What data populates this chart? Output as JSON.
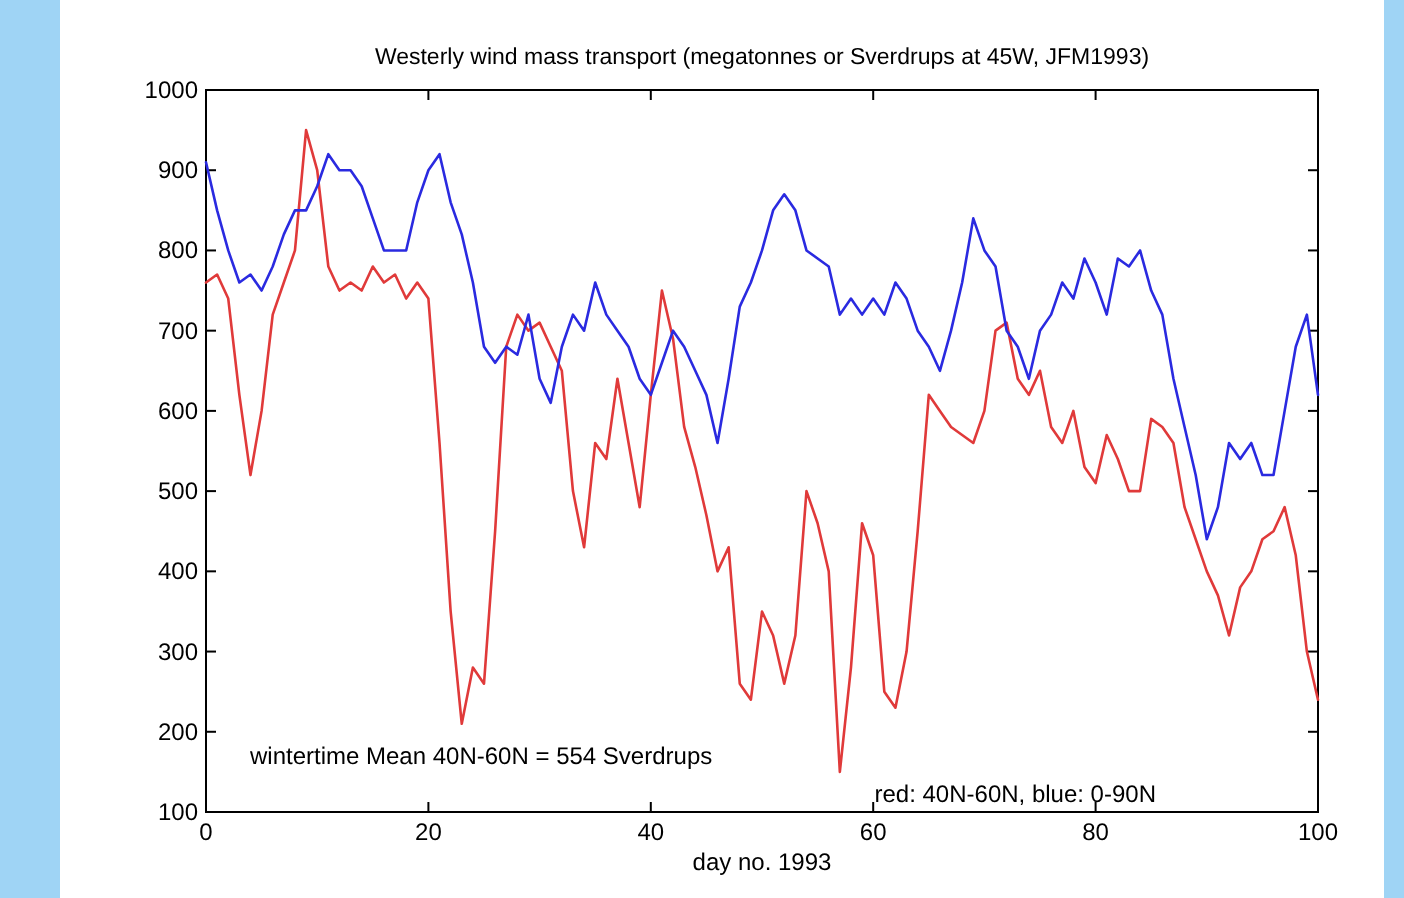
{
  "chart_data": {
    "type": "line",
    "title": "Westerly wind mass transport (megatonnes or Sverdrups at 45W, JFM1993)",
    "xlabel": "day no. 1993",
    "x": [
      0,
      1,
      2,
      3,
      4,
      5,
      6,
      7,
      8,
      9,
      10,
      11,
      12,
      13,
      14,
      15,
      16,
      17,
      18,
      19,
      20,
      21,
      22,
      23,
      24,
      25,
      26,
      27,
      28,
      29,
      30,
      31,
      32,
      33,
      34,
      35,
      36,
      37,
      38,
      39,
      40,
      41,
      42,
      43,
      44,
      45,
      46,
      47,
      48,
      49,
      50,
      51,
      52,
      53,
      54,
      55,
      56,
      57,
      58,
      59,
      60,
      61,
      62,
      63,
      64,
      65,
      66,
      67,
      68,
      69,
      70,
      71,
      72,
      73,
      74,
      75,
      76,
      77,
      78,
      79,
      80,
      81,
      82,
      83,
      84,
      85,
      86,
      87,
      88,
      89,
      90,
      91,
      92,
      93,
      94,
      95,
      96,
      97,
      98,
      99,
      100
    ],
    "series": [
      {
        "color": "#e03a3a",
        "values": [
          760,
          770,
          740,
          620,
          520,
          600,
          720,
          760,
          800,
          950,
          900,
          780,
          750,
          760,
          750,
          780,
          760,
          770,
          740,
          760,
          740,
          560,
          350,
          210,
          280,
          260,
          450,
          680,
          720,
          700,
          710,
          680,
          650,
          500,
          430,
          560,
          540,
          640,
          560,
          480,
          620,
          750,
          690,
          580,
          530,
          470,
          400,
          430,
          260,
          240,
          350,
          320,
          260,
          320,
          500,
          460,
          400,
          150,
          280,
          460,
          420,
          250,
          230,
          300,
          450,
          620,
          600,
          580,
          570,
          560,
          600,
          700,
          710,
          640,
          620,
          650,
          580,
          560,
          600,
          530,
          510,
          570,
          540,
          500,
          500,
          590,
          580,
          560,
          480,
          440,
          400,
          370,
          320,
          380,
          400,
          440,
          450,
          480,
          420,
          300,
          240
        ]
      },
      {
        "color": "#2a2ae0",
        "values": [
          910,
          850,
          800,
          760,
          770,
          750,
          780,
          820,
          850,
          850,
          880,
          920,
          900,
          900,
          880,
          840,
          800,
          800,
          800,
          860,
          900,
          920,
          860,
          820,
          760,
          680,
          660,
          680,
          670,
          720,
          640,
          610,
          680,
          720,
          700,
          760,
          720,
          700,
          680,
          640,
          620,
          660,
          700,
          680,
          650,
          620,
          560,
          640,
          730,
          760,
          800,
          850,
          870,
          850,
          800,
          790,
          780,
          720,
          740,
          720,
          740,
          720,
          760,
          740,
          700,
          680,
          650,
          700,
          760,
          840,
          800,
          780,
          700,
          680,
          640,
          700,
          720,
          760,
          740,
          790,
          760,
          720,
          790,
          780,
          800,
          750,
          720,
          640,
          580,
          520,
          440,
          480,
          560,
          540,
          560,
          520,
          520,
          600,
          680,
          720,
          620
        ]
      }
    ],
    "xlim": [
      0,
      100
    ],
    "xticks": [
      0,
      20,
      40,
      60,
      80,
      100
    ],
    "ylim": [
      100,
      1000
    ],
    "yticks": [
      100,
      200,
      300,
      400,
      500,
      600,
      700,
      800,
      900,
      1000
    ],
    "annotations": [
      "wintertime Mean 40N-60N = 554 Sverdrups",
      "red: 40N-60N, blue: 0-90N"
    ]
  }
}
